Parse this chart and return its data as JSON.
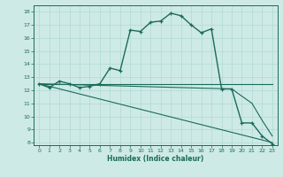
{
  "xlabel": "Humidex (Indice chaleur)",
  "xlim": [
    -0.5,
    23.5
  ],
  "ylim": [
    7.8,
    18.5
  ],
  "yticks": [
    8,
    9,
    10,
    11,
    12,
    13,
    14,
    15,
    16,
    17,
    18
  ],
  "xticks": [
    0,
    1,
    2,
    3,
    4,
    5,
    6,
    7,
    8,
    9,
    10,
    11,
    12,
    13,
    14,
    15,
    16,
    17,
    18,
    19,
    20,
    21,
    22,
    23
  ],
  "bg_color": "#ceeae6",
  "line_color": "#1a6b5a",
  "grid_color": "#b0d9d2",
  "curve1_x": [
    0,
    1,
    2,
    3,
    4,
    5,
    6,
    7,
    8,
    9,
    10,
    11,
    12,
    13,
    14,
    15,
    16,
    17,
    18,
    19,
    20,
    21,
    22,
    23
  ],
  "curve1_y": [
    12.5,
    12.2,
    12.7,
    12.5,
    12.2,
    12.3,
    12.5,
    13.7,
    13.5,
    16.6,
    16.5,
    17.2,
    17.3,
    17.9,
    17.7,
    17.0,
    16.4,
    16.7,
    12.1,
    12.1,
    9.5,
    9.5,
    8.5,
    7.9
  ],
  "curve2_x": [
    0,
    23
  ],
  "curve2_y": [
    12.5,
    12.5
  ],
  "curve3_x": [
    0,
    19,
    21,
    22,
    23
  ],
  "curve3_y": [
    12.5,
    12.1,
    11.0,
    9.7,
    8.5
  ],
  "curve4_x": [
    0,
    23
  ],
  "curve4_y": [
    12.5,
    8.0
  ]
}
